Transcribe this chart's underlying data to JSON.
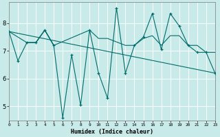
{
  "xlabel": "Humidex (Indice chaleur)",
  "bg_color": "#c8eae8",
  "plot_bg_color": "#c8eae8",
  "grid_color": "#ffffff",
  "line_color": "#006b6b",
  "series": [
    {
      "x": [
        0,
        1,
        2,
        3,
        4,
        5,
        6,
        7,
        8,
        9,
        10,
        11,
        12,
        13,
        14,
        15,
        16,
        17,
        18,
        19,
        20,
        21,
        22,
        23
      ],
      "y": [
        7.7,
        6.65,
        7.3,
        7.3,
        7.75,
        7.2,
        4.6,
        6.85,
        5.05,
        7.75,
        6.2,
        5.3,
        8.55,
        6.2,
        7.2,
        7.5,
        8.35,
        7.05,
        8.35,
        7.9,
        7.2,
        6.95,
        6.95,
        6.2
      ],
      "marker": true
    },
    {
      "x": [
        0,
        2,
        3,
        4,
        5,
        9,
        10,
        11,
        13,
        14,
        15,
        16,
        17,
        18,
        19,
        20,
        21,
        22,
        23
      ],
      "y": [
        7.7,
        7.3,
        7.3,
        7.75,
        7.2,
        7.75,
        7.45,
        7.45,
        7.2,
        7.2,
        7.45,
        7.55,
        7.2,
        7.55,
        7.55,
        7.2,
        7.2,
        6.95,
        6.95
      ],
      "marker": false
    },
    {
      "x": [
        0,
        23
      ],
      "y": [
        7.7,
        6.2
      ],
      "marker": false
    },
    {
      "x": [
        2,
        3,
        4,
        5
      ],
      "y": [
        7.3,
        7.3,
        7.75,
        7.2
      ],
      "marker": false
    }
  ],
  "xlim": [
    0,
    23
  ],
  "ylim": [
    4.5,
    8.75
  ],
  "yticks": [
    5,
    6,
    7,
    8
  ],
  "xticks": [
    0,
    1,
    2,
    3,
    4,
    5,
    6,
    7,
    8,
    9,
    10,
    11,
    12,
    13,
    14,
    15,
    16,
    17,
    18,
    19,
    20,
    21,
    22,
    23
  ]
}
